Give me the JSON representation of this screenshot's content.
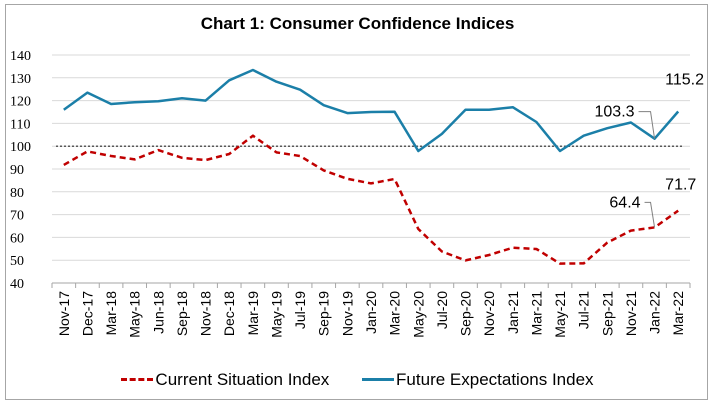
{
  "chart_data": {
    "type": "line",
    "title": "Chart 1: Consumer Confidence Indices",
    "xlabel": "",
    "ylabel": "",
    "ylim": [
      40,
      140
    ],
    "yticks": [
      40,
      50,
      60,
      70,
      80,
      90,
      100,
      110,
      120,
      130,
      140
    ],
    "grid": true,
    "reference_line": {
      "value": 100,
      "style": "dotted"
    },
    "legend_position": "bottom",
    "categories": [
      "Nov-17",
      "Dec-17",
      "Mar-18",
      "May-18",
      "Jun-18",
      "Sep-18",
      "Nov-18",
      "Dec-18",
      "Mar-19",
      "May-19",
      "Jul-19",
      "Sep-19",
      "Nov-19",
      "Jan-20",
      "Mar-20",
      "May-20",
      "Jul-20",
      "Sep-20",
      "Nov-20",
      "Jan-21",
      "Mar-21",
      "May-21",
      "Jul-21",
      "Sep-21",
      "Nov-21",
      "Jan-22",
      "Mar-22"
    ],
    "series": [
      {
        "name": "Current Situation Index",
        "color": "#c00000",
        "style": "dashed",
        "values": [
          91.8,
          97.7,
          95.7,
          94.2,
          98.3,
          94.9,
          93.9,
          96.6,
          104.6,
          97.3,
          95.7,
          89.4,
          85.7,
          83.7,
          85.6,
          63.7,
          53.8,
          49.9,
          52.3,
          55.5,
          54.9,
          48.5,
          48.6,
          57.7,
          63.0,
          64.4,
          71.7
        ]
      },
      {
        "name": "Future Expectations Index",
        "color": "#1b7fa8",
        "style": "solid",
        "values": [
          116.0,
          123.5,
          118.5,
          119.3,
          119.7,
          121.0,
          120.0,
          128.9,
          133.4,
          128.3,
          124.8,
          118.0,
          114.5,
          115.0,
          115.1,
          97.9,
          105.4,
          116.0,
          116.0,
          117.1,
          110.6,
          97.9,
          104.6,
          107.9,
          110.4,
          103.3,
          115.2
        ]
      }
    ],
    "annotations": [
      {
        "series": "Future Expectations Index",
        "category": "Jan-22",
        "text": "103.3"
      },
      {
        "series": "Future Expectations Index",
        "category": "Mar-22",
        "text": "115.2"
      },
      {
        "series": "Current Situation Index",
        "category": "Jan-22",
        "text": "64.4"
      },
      {
        "series": "Current Situation Index",
        "category": "Mar-22",
        "text": "71.7"
      }
    ]
  }
}
